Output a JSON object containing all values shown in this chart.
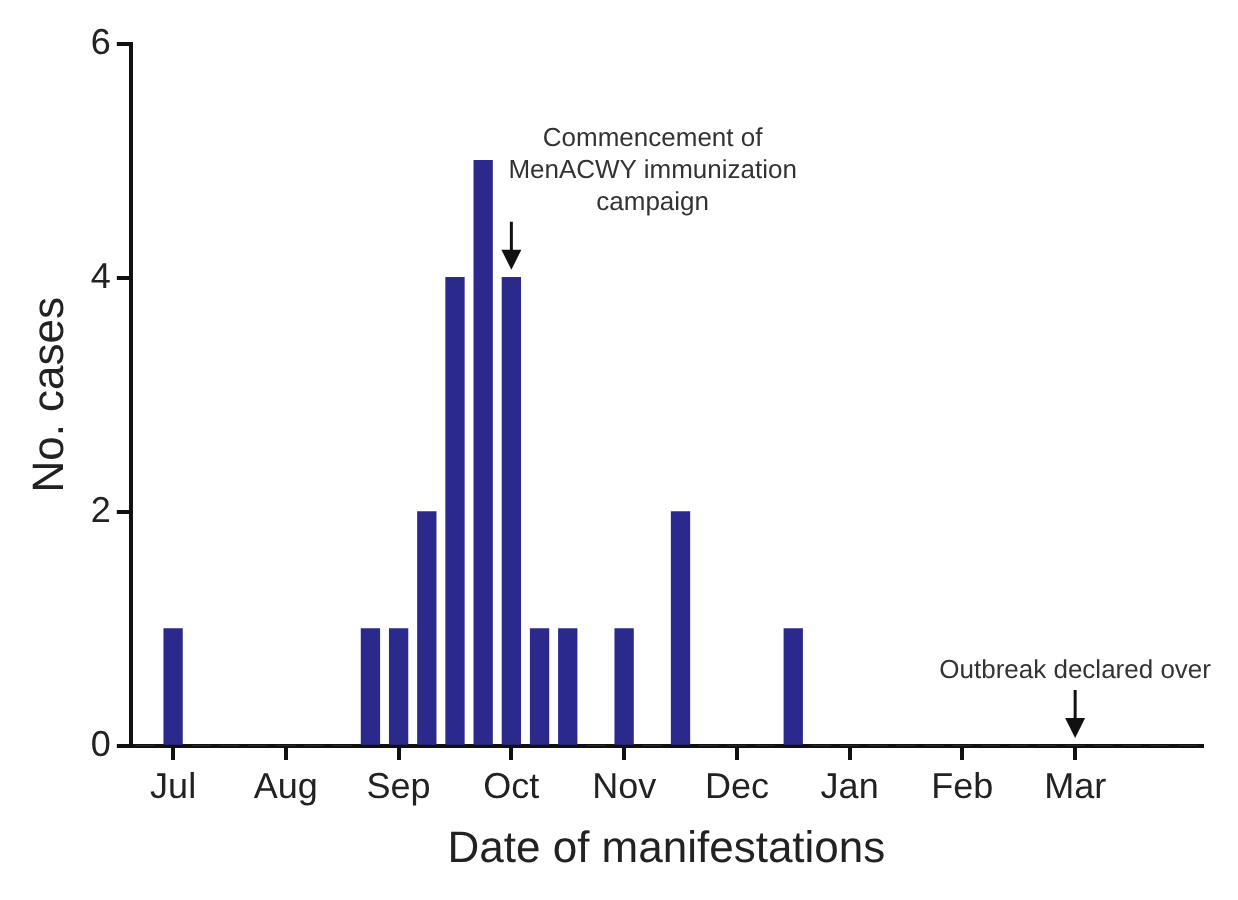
{
  "chart_data": {
    "type": "bar",
    "xlabel": "Date of manifestations",
    "ylabel": "No. cases",
    "categories": [
      null,
      "Jul",
      null,
      null,
      null,
      "Aug",
      null,
      null,
      null,
      "Sep",
      null,
      null,
      null,
      "Oct",
      null,
      null,
      null,
      "Nov",
      null,
      null,
      null,
      "Dec",
      null,
      null,
      null,
      "Jan",
      null,
      null,
      null,
      "Feb",
      null,
      null,
      null,
      "Mar",
      null,
      null,
      null,
      null
    ],
    "values": [
      0,
      1,
      0,
      0,
      0,
      0,
      0,
      0,
      1,
      1,
      2,
      4,
      5,
      4,
      1,
      1,
      0,
      1,
      0,
      2,
      0,
      0,
      0,
      1,
      0,
      0,
      0,
      0,
      0,
      0,
      0,
      0,
      0,
      0,
      0,
      0,
      0,
      0
    ],
    "color": "#2b2a8c",
    "ylim": [
      0,
      6
    ],
    "yticks": [
      0,
      2,
      4,
      6
    ],
    "annotations": [
      {
        "text": "Commencement of MenACWY immunization campaign",
        "x": "Oct",
        "y": 4
      },
      {
        "text": "Outbreak declared over",
        "x": "Mar",
        "y": 0
      }
    ]
  }
}
